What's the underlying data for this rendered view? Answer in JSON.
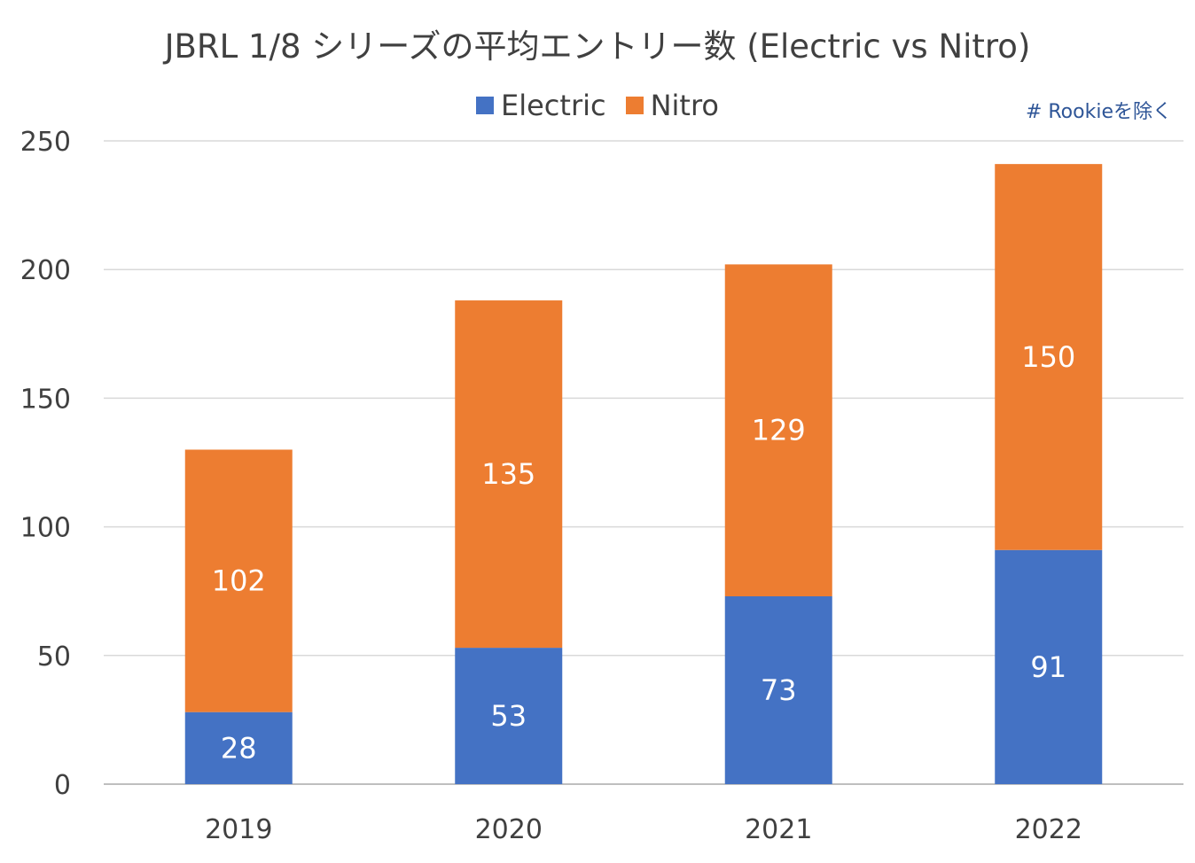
{
  "chart_data": {
    "type": "bar",
    "stacked": true,
    "title": "JBRL 1/8 シリーズの平均エントリー数 (Electric vs Nitro)",
    "annotation": "# Rookieを除く",
    "categories": [
      "2019",
      "2020",
      "2021",
      "2022"
    ],
    "series": [
      {
        "name": "Electric",
        "values": [
          28,
          53,
          73,
          91
        ],
        "color": "#4472c4"
      },
      {
        "name": "Nitro",
        "values": [
          102,
          135,
          129,
          150
        ],
        "color": "#ed7d31"
      }
    ],
    "ylim": [
      0,
      250
    ],
    "yticks": [
      0,
      50,
      100,
      150,
      200,
      250
    ],
    "grid": true,
    "legend_position": "top-center"
  }
}
